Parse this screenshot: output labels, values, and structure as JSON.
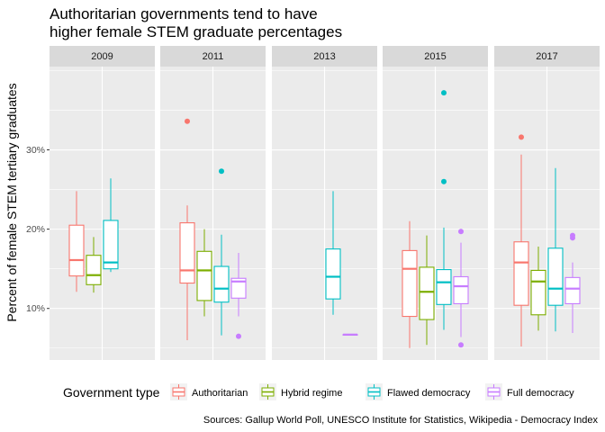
{
  "chart_data": {
    "type": "boxplot",
    "title_line1": "Authoritarian governments tend to have",
    "title_line2": "higher female STEM graduate percentages",
    "ylabel": "Percent of female STEM tertiary graduates",
    "xlabel": "",
    "ylim": [
      3.5,
      40.5
    ],
    "y_ticks": [
      10,
      20,
      30
    ],
    "y_tick_labels": [
      "10%",
      "20%",
      "30%"
    ],
    "grid": true,
    "facets": [
      "2009",
      "2011",
      "2013",
      "2015",
      "2017"
    ],
    "legend_title": "Government type",
    "legend_position": "bottom",
    "caption": "Sources: Gallup World Poll, UNESCO Institute for Statistics, Wikipedia - Democracy Index",
    "series": [
      {
        "name": "Authoritarian",
        "color": "#F8766D"
      },
      {
        "name": "Hybrid regime",
        "color": "#7CAE00"
      },
      {
        "name": "Flawed democracy",
        "color": "#00BFC4"
      },
      {
        "name": "Full democracy",
        "color": "#C77CFF"
      }
    ],
    "boxes": [
      {
        "facet": "2009",
        "series": "Authoritarian",
        "min": 12.1,
        "q1": 14.1,
        "median": 16.1,
        "q3": 20.5,
        "max": 24.8,
        "outliers": []
      },
      {
        "facet": "2009",
        "series": "Hybrid regime",
        "min": 12.0,
        "q1": 13.0,
        "median": 14.2,
        "q3": 16.7,
        "max": 19.0,
        "outliers": []
      },
      {
        "facet": "2009",
        "series": "Flawed democracy",
        "min": 14.6,
        "q1": 15.0,
        "median": 15.8,
        "q3": 21.1,
        "max": 26.4,
        "outliers": []
      },
      {
        "facet": "2011",
        "series": "Authoritarian",
        "min": 6.0,
        "q1": 13.2,
        "median": 14.8,
        "q3": 20.8,
        "max": 23.0,
        "outliers": [
          33.6
        ]
      },
      {
        "facet": "2011",
        "series": "Hybrid regime",
        "min": 9.0,
        "q1": 11.0,
        "median": 14.8,
        "q3": 17.2,
        "max": 20.0,
        "outliers": []
      },
      {
        "facet": "2011",
        "series": "Flawed democracy",
        "min": 6.6,
        "q1": 10.8,
        "median": 12.5,
        "q3": 15.3,
        "max": 19.3,
        "outliers": [
          27.3
        ]
      },
      {
        "facet": "2011",
        "series": "Full democracy",
        "min": 9.0,
        "q1": 11.3,
        "median": 13.4,
        "q3": 13.8,
        "max": 17.0,
        "outliers": [
          6.5
        ]
      },
      {
        "facet": "2013",
        "series": "Flawed democracy",
        "min": 9.2,
        "q1": 11.2,
        "median": 14.0,
        "q3": 17.5,
        "max": 24.8,
        "outliers": []
      },
      {
        "facet": "2013",
        "series": "Full democracy",
        "min": 6.7,
        "q1": 6.7,
        "median": 6.7,
        "q3": 6.7,
        "max": 6.7,
        "outliers": []
      },
      {
        "facet": "2015",
        "series": "Authoritarian",
        "min": 5.0,
        "q1": 9.0,
        "median": 15.0,
        "q3": 17.3,
        "max": 21.0,
        "outliers": []
      },
      {
        "facet": "2015",
        "series": "Hybrid regime",
        "min": 5.4,
        "q1": 8.6,
        "median": 12.1,
        "q3": 15.2,
        "max": 19.2,
        "outliers": []
      },
      {
        "facet": "2015",
        "series": "Flawed democracy",
        "min": 7.3,
        "q1": 10.5,
        "median": 13.3,
        "q3": 14.9,
        "max": 20.2,
        "outliers": [
          37.2,
          26.0
        ]
      },
      {
        "facet": "2015",
        "series": "Full democracy",
        "min": 6.4,
        "q1": 10.6,
        "median": 12.8,
        "q3": 14.0,
        "max": 18.3,
        "outliers": [
          19.7,
          5.4
        ]
      },
      {
        "facet": "2017",
        "series": "Authoritarian",
        "min": 5.2,
        "q1": 10.4,
        "median": 15.8,
        "q3": 18.4,
        "max": 29.4,
        "outliers": [
          31.6
        ]
      },
      {
        "facet": "2017",
        "series": "Hybrid regime",
        "min": 7.2,
        "q1": 9.2,
        "median": 13.4,
        "q3": 14.8,
        "max": 17.8,
        "outliers": []
      },
      {
        "facet": "2017",
        "series": "Flawed democracy",
        "min": 7.1,
        "q1": 10.4,
        "median": 12.5,
        "q3": 17.6,
        "max": 27.7,
        "outliers": []
      },
      {
        "facet": "2017",
        "series": "Full democracy",
        "min": 6.9,
        "q1": 10.6,
        "median": 12.5,
        "q3": 13.9,
        "max": 15.8,
        "outliers": [
          19.2,
          18.9
        ]
      }
    ]
  }
}
